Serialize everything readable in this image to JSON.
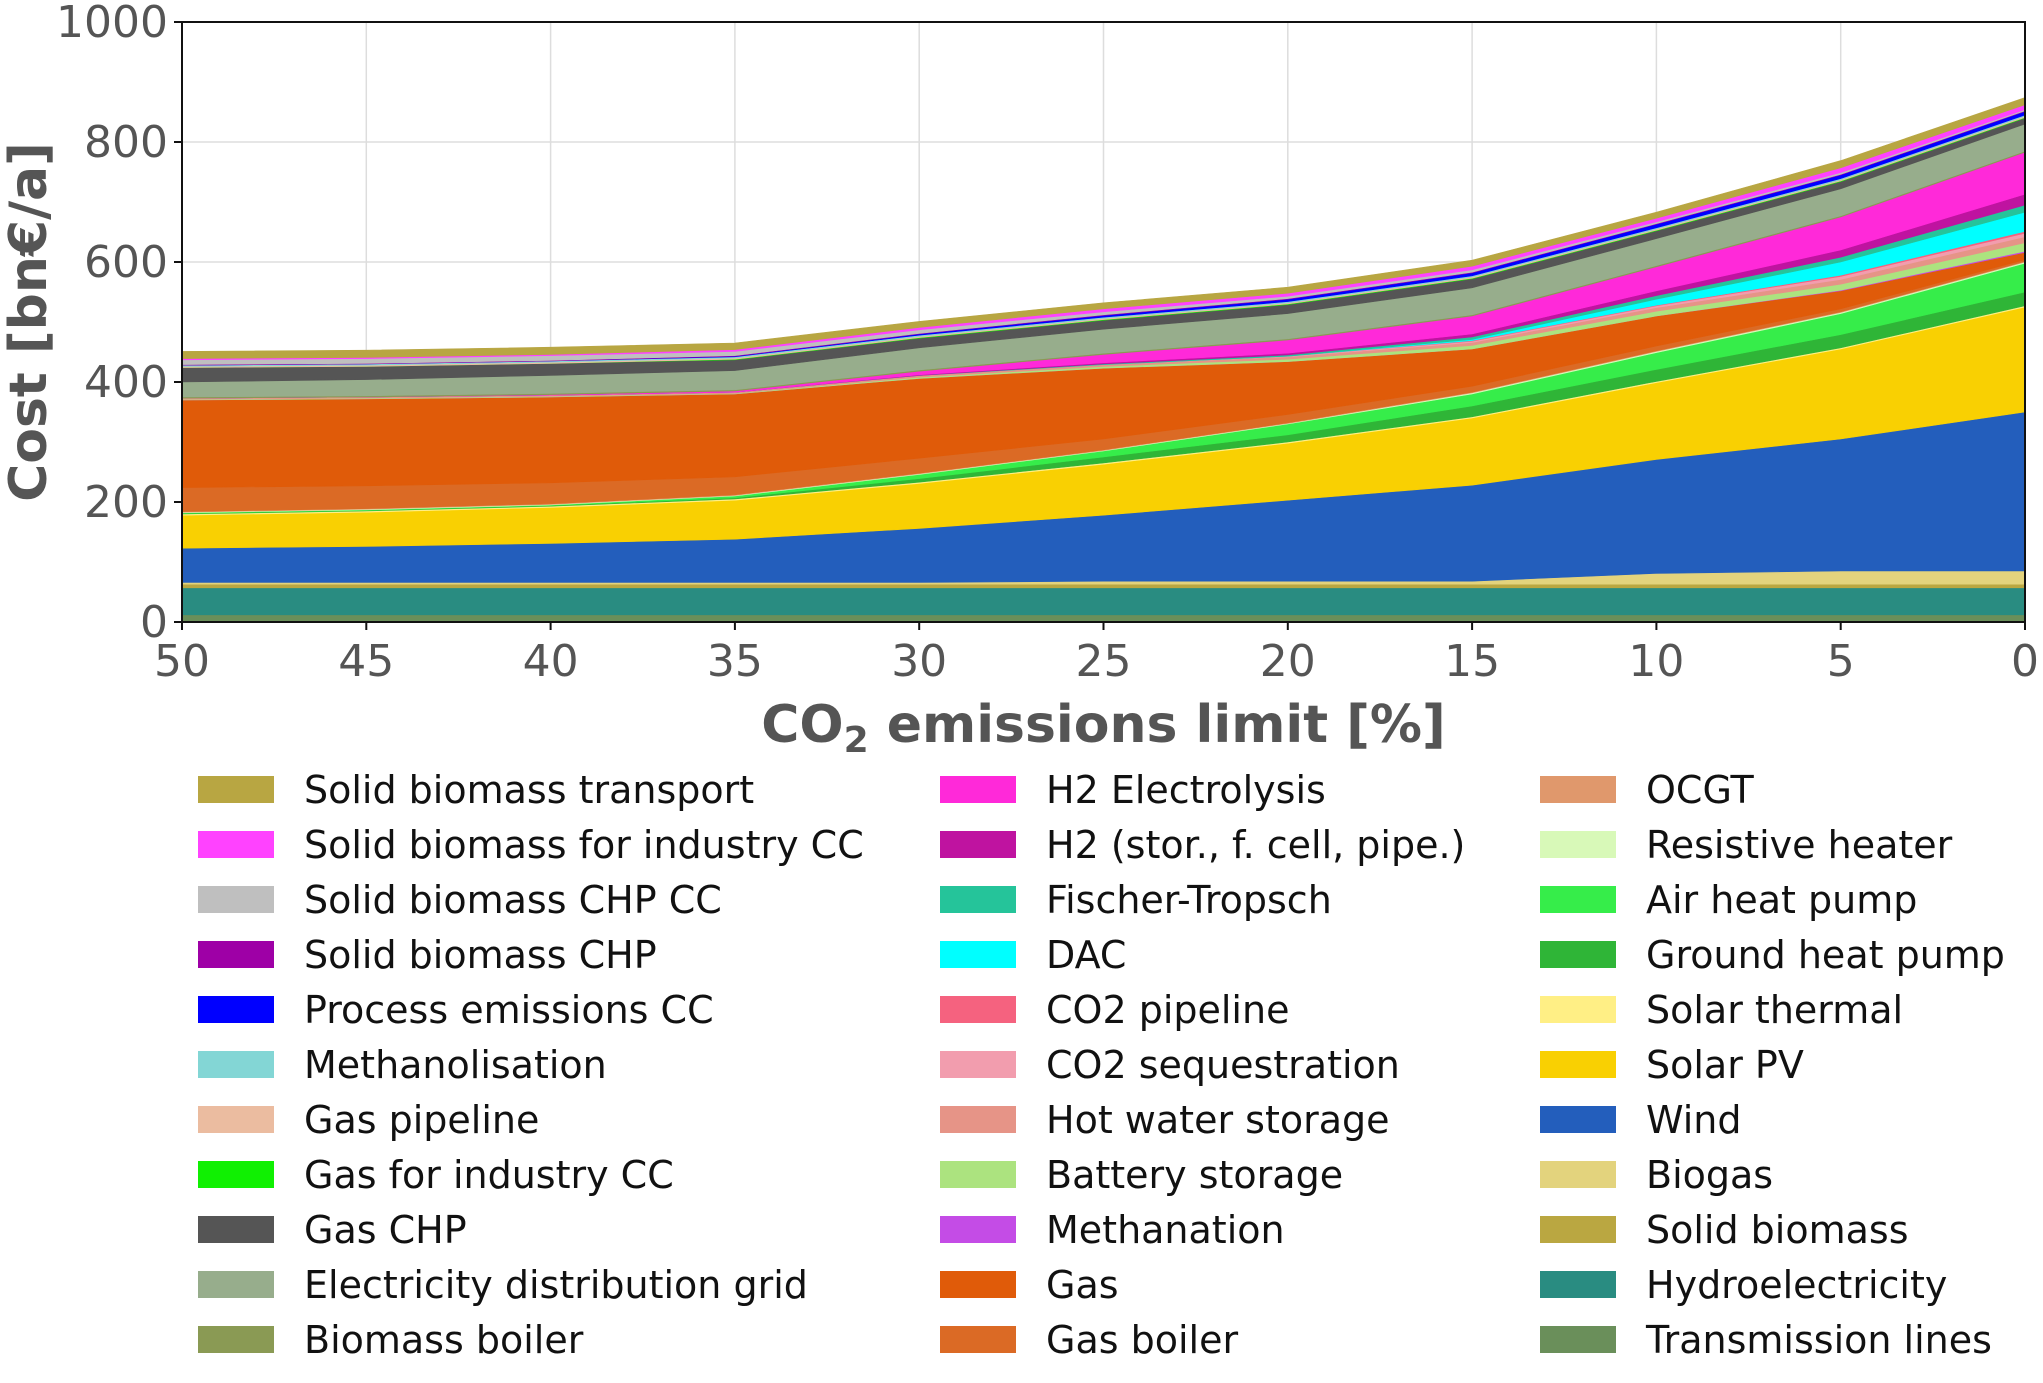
{
  "chart_data": {
    "type": "area",
    "stacked": true,
    "x": [
      50,
      45,
      40,
      35,
      30,
      25,
      20,
      15,
      10,
      5,
      0
    ],
    "x_reversed": true,
    "xlim": [
      50,
      0
    ],
    "ylim": [
      0,
      1000
    ],
    "x_ticks": [
      50,
      45,
      40,
      35,
      30,
      25,
      20,
      15,
      10,
      5,
      0
    ],
    "y_ticks": [
      0,
      200,
      400,
      600,
      800,
      1000
    ],
    "xlabel": "CO2 emissions limit [%]",
    "ylabel": "Cost [bn€/a]",
    "grid": true,
    "legend_placement": "below, 3 columns",
    "series": [
      {
        "name": "Transmission lines",
        "color": "#6a8f5a",
        "values": [
          12,
          12,
          12,
          12,
          12,
          12,
          12,
          12,
          12,
          12,
          12
        ]
      },
      {
        "name": "Hydroelectricity",
        "color": "#298c81",
        "values": [
          45,
          45,
          45,
          45,
          45,
          45,
          45,
          45,
          45,
          45,
          45
        ]
      },
      {
        "name": "Solid biomass",
        "color": "#baa741",
        "values": [
          6,
          6,
          6,
          6,
          6,
          6,
          6,
          6,
          6,
          6,
          6
        ]
      },
      {
        "name": "Biogas",
        "color": "#e3d37d",
        "values": [
          3,
          3,
          3,
          3,
          3,
          5,
          5,
          5,
          18,
          22,
          22
        ]
      },
      {
        "name": "Wind",
        "color": "#235ebc",
        "values": [
          57,
          60,
          65,
          72,
          90,
          110,
          135,
          160,
          190,
          220,
          265
        ]
      },
      {
        "name": "Solar PV",
        "color": "#f9d002",
        "values": [
          55,
          57,
          60,
          65,
          75,
          85,
          95,
          112,
          128,
          150,
          175
        ]
      },
      {
        "name": "Solar thermal",
        "color": "#ffef85",
        "values": [
          2,
          2,
          2,
          2,
          2,
          2,
          2,
          2,
          2,
          2,
          2
        ]
      },
      {
        "name": "Ground heat pump",
        "color": "#2fb537",
        "values": [
          1,
          1,
          1,
          2,
          6,
          10,
          12,
          18,
          20,
          22,
          23
        ]
      },
      {
        "name": "Air heat pump",
        "color": "#36ed4a",
        "values": [
          1,
          1,
          1,
          3,
          7,
          10,
          18,
          20,
          28,
          35,
          48
        ]
      },
      {
        "name": "Resistive heater",
        "color": "#d8f9b8",
        "values": [
          1,
          1,
          1,
          1,
          1,
          1,
          1,
          2,
          2,
          2,
          2
        ]
      },
      {
        "name": "OCGT",
        "color": "#e0986c",
        "values": [
          1,
          1,
          1,
          1,
          1,
          1,
          1,
          1,
          1,
          1,
          1
        ]
      },
      {
        "name": "Gas boiler",
        "color": "#db6a25",
        "values": [
          40,
          38,
          35,
          30,
          25,
          18,
          14,
          10,
          8,
          5,
          3
        ]
      },
      {
        "name": "Gas",
        "color": "#e05b09",
        "values": [
          146,
          145,
          143,
          138,
          133,
          118,
          88,
          62,
          50,
          30,
          12
        ]
      },
      {
        "name": "Methanation",
        "color": "#c44ce6",
        "values": [
          0,
          0,
          0,
          0,
          0,
          0,
          0,
          0,
          0,
          1,
          2
        ]
      },
      {
        "name": "Battery storage",
        "color": "#ace37f",
        "values": [
          1,
          1,
          1,
          1,
          2,
          3,
          4,
          6,
          8,
          10,
          14
        ]
      },
      {
        "name": "Hot water storage",
        "color": "#e69487",
        "values": [
          2,
          2,
          2,
          2,
          3,
          3,
          4,
          5,
          6,
          8,
          10
        ]
      },
      {
        "name": "CO2 sequestration",
        "color": "#f29dae",
        "values": [
          0,
          0,
          0,
          0,
          0,
          0,
          1,
          2,
          3,
          5,
          6
        ]
      },
      {
        "name": "CO2 pipeline",
        "color": "#f5627f",
        "values": [
          0,
          0,
          0,
          0,
          0,
          0,
          0,
          1,
          1,
          2,
          3
        ]
      },
      {
        "name": "DAC",
        "color": "#00ffff",
        "values": [
          0,
          0,
          0,
          0,
          0,
          0,
          0,
          2,
          10,
          22,
          32
        ]
      },
      {
        "name": "Fischer-Tropsch",
        "color": "#25c49a",
        "values": [
          0,
          0,
          0,
          0,
          0,
          1,
          2,
          4,
          6,
          8,
          12
        ]
      },
      {
        "name": "H2 (stor., f. cell, pipe.)",
        "color": "#bf13a0",
        "values": [
          0,
          0,
          0,
          0,
          1,
          2,
          3,
          5,
          8,
          12,
          18
        ]
      },
      {
        "name": "H2 Electrolysis",
        "color": "#ff29d9",
        "values": [
          0,
          0,
          1,
          2,
          6,
          14,
          22,
          30,
          40,
          55,
          70
        ]
      },
      {
        "name": "Biomass boiler",
        "color": "#8a9a54",
        "values": [
          2,
          2,
          2,
          2,
          2,
          2,
          2,
          2,
          2,
          2,
          2
        ]
      },
      {
        "name": "Electricity distribution grid",
        "color": "#97ad8c",
        "values": [
          25,
          27,
          30,
          32,
          37,
          40,
          42,
          45,
          45,
          45,
          45
        ]
      },
      {
        "name": "Gas CHP",
        "color": "#555555",
        "values": [
          24,
          22,
          20,
          18,
          16,
          15,
          15,
          15,
          13,
          12,
          10
        ]
      },
      {
        "name": "Gas for industry CC",
        "color": "#10f002",
        "values": [
          0,
          0,
          0,
          1,
          1,
          1,
          1,
          1,
          1,
          1,
          1
        ]
      },
      {
        "name": "Gas pipeline",
        "color": "#ebbca0",
        "values": [
          2,
          2,
          2,
          2,
          2,
          2,
          2,
          2,
          2,
          2,
          2
        ]
      },
      {
        "name": "Methanolisation",
        "color": "#83d6d5",
        "values": [
          2,
          2,
          2,
          2,
          2,
          2,
          2,
          2,
          2,
          2,
          2
        ]
      },
      {
        "name": "Process emissions CC",
        "color": "#0000ff",
        "values": [
          0,
          0,
          0,
          1,
          2,
          3,
          4,
          5,
          6,
          6,
          6
        ]
      },
      {
        "name": "Solid biomass CHP",
        "color": "#9e00a6",
        "values": [
          1,
          1,
          1,
          1,
          1,
          1,
          1,
          1,
          1,
          1,
          1
        ]
      },
      {
        "name": "Solid biomass CHP CC",
        "color": "#bfbfbf",
        "values": [
          8,
          8,
          8,
          7,
          6,
          5,
          4,
          4,
          3,
          3,
          2
        ]
      },
      {
        "name": "Solid biomass for industry CC",
        "color": "#ff42ff",
        "values": [
          2,
          2,
          2,
          3,
          4,
          5,
          5,
          6,
          6,
          8,
          8
        ]
      },
      {
        "name": "Solid biomass transport",
        "color": "#b8a642",
        "values": [
          12,
          12,
          12,
          11,
          10,
          10,
          10,
          10,
          10,
          12,
          12
        ]
      }
    ]
  }
}
